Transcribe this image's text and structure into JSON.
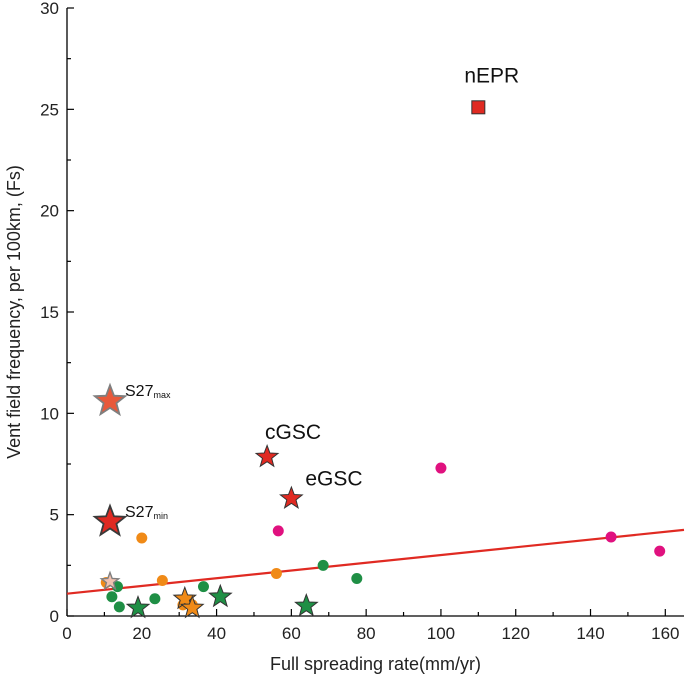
{
  "chart_data": {
    "type": "scatter",
    "xlabel": "Full spreading rate(mm/yr)",
    "ylabel": "Vent field frequency, per 100km, (Fs)",
    "xlim": [
      0,
      165
    ],
    "ylim": [
      0,
      30
    ],
    "x_ticks": [
      "0",
      "20",
      "40",
      "60",
      "80",
      "100",
      "120",
      "140",
      "160"
    ],
    "y_ticks": [
      "0",
      "5",
      "10",
      "15",
      "20",
      "25",
      "30"
    ],
    "grid": false,
    "legend": "none",
    "colors": {
      "orange": "#f08a17",
      "green": "#1f8f45",
      "magenta": "#e0117f",
      "red": "#e02a22",
      "trend": "#e02a22",
      "s27max_fill": "#e8593a",
      "s27max_stroke": "#7f7f7f",
      "s27min_fill": "#e02a22",
      "s27min_stroke": "#3a3a3a"
    },
    "series": [
      {
        "marker": "circle",
        "color": "orange",
        "points": [
          [
            10.5,
            1.65
          ],
          [
            20,
            3.85
          ],
          [
            25.5,
            1.75
          ],
          [
            31,
            0.55
          ],
          [
            33.5,
            0.55
          ],
          [
            56,
            2.1
          ]
        ]
      },
      {
        "marker": "circle",
        "color": "green",
        "points": [
          [
            12,
            0.95
          ],
          [
            13.5,
            1.45
          ],
          [
            14,
            0.45
          ],
          [
            23.5,
            0.85
          ],
          [
            36.5,
            1.45
          ],
          [
            68.5,
            2.5
          ],
          [
            77.5,
            1.85
          ]
        ]
      },
      {
        "marker": "circle",
        "color": "magenta",
        "points": [
          [
            56.5,
            4.2
          ],
          [
            100,
            7.3
          ],
          [
            145.5,
            3.9
          ],
          [
            158.5,
            3.2
          ]
        ]
      },
      {
        "marker": "star",
        "color": "orange",
        "points": [
          [
            31.5,
            0.85
          ],
          [
            33.5,
            0.4
          ]
        ]
      },
      {
        "marker": "star",
        "color": "green",
        "points": [
          [
            19,
            0.4
          ],
          [
            41,
            0.95
          ],
          [
            64,
            0.5
          ]
        ]
      },
      {
        "marker": "star",
        "color": "red",
        "points": [
          [
            53.5,
            7.85
          ],
          [
            60,
            5.8
          ]
        ]
      },
      {
        "marker": "square",
        "color": "red",
        "points": [
          [
            110,
            25.1
          ]
        ]
      }
    ],
    "highlights": [
      {
        "x": 11.5,
        "y": 10.6,
        "marker": "star",
        "fill": "s27max_fill",
        "stroke": "s27max_stroke"
      },
      {
        "x": 11.5,
        "y": 4.65,
        "marker": "star",
        "fill": "s27min_fill",
        "stroke": "s27min_stroke"
      },
      {
        "x": 11.5,
        "y": 1.7,
        "marker": "star",
        "fill": "#f1c2b0",
        "stroke": "s27max_stroke"
      }
    ],
    "trendline": {
      "x": [
        0,
        165
      ],
      "y": [
        1.1,
        4.25
      ]
    },
    "annotations": [
      {
        "text": "nEPR",
        "x": 110,
        "y": 25.1
      },
      {
        "text": "cGSC",
        "x": 53.5,
        "y": 7.85
      },
      {
        "text": "eGSC",
        "x": 60,
        "y": 5.8
      },
      {
        "text": "S27",
        "sub": "max",
        "x": 11.5,
        "y": 10.6
      },
      {
        "text": "S27",
        "sub": "min",
        "x": 11.5,
        "y": 4.65
      }
    ]
  }
}
